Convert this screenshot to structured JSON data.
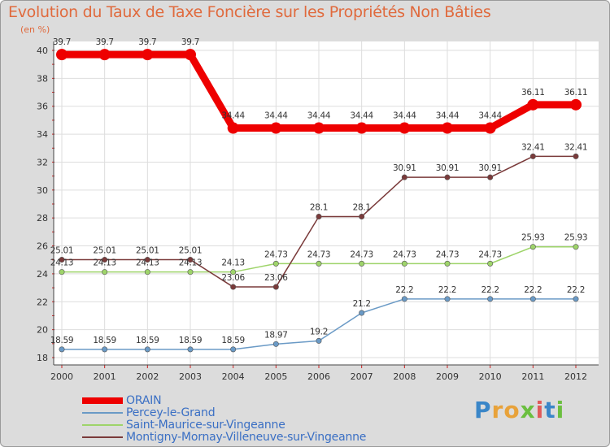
{
  "title": "Evolution du Taux de Taxe Foncière sur les Propriétés Non Bâties",
  "unit_label": "(en %)",
  "brand": "Proxiti",
  "chart_data": {
    "type": "line",
    "title": "Evolution du Taux de Taxe Foncière sur les Propriétés Non Bâties",
    "ylabel": "(en %)",
    "xlabel": "",
    "x": [
      "2000",
      "2001",
      "2002",
      "2003",
      "2004",
      "2005",
      "2006",
      "2007",
      "2008",
      "2009",
      "2010",
      "2011",
      "2012"
    ],
    "ylim": [
      18,
      40
    ],
    "yticks": [
      18,
      20,
      22,
      24,
      26,
      28,
      30,
      32,
      34,
      36,
      38,
      40
    ],
    "grid": true,
    "legend_position": "bottom-left",
    "series": [
      {
        "name": "ORAIN",
        "color": "#ee0000",
        "values": [
          39.7,
          39.7,
          39.7,
          39.7,
          34.44,
          34.44,
          34.44,
          34.44,
          34.44,
          34.44,
          34.44,
          36.11,
          36.11
        ],
        "labels": [
          "39.7",
          "39.7",
          "39.7",
          "39.7",
          "34.44",
          "34.44",
          "34.44",
          "34.44",
          "34.44",
          "34.44",
          "34.44",
          "36.11",
          "36.11"
        ]
      },
      {
        "name": "Percey-le-Grand",
        "color": "#6a9ac6",
        "values": [
          18.59,
          18.59,
          18.59,
          18.59,
          18.59,
          18.97,
          19.2,
          21.2,
          22.2,
          22.2,
          22.2,
          22.2,
          22.2
        ],
        "labels": [
          "18.59",
          "18.59",
          "18.59",
          "18.59",
          "18.59",
          "18.97",
          "19.2",
          "21.2",
          "22.2",
          "22.2",
          "22.2",
          "22.2",
          "22.2"
        ]
      },
      {
        "name": "Saint-Maurice-sur-Vingeanne",
        "color": "#9ed46a",
        "values": [
          24.13,
          24.13,
          24.13,
          24.13,
          24.13,
          24.73,
          24.73,
          24.73,
          24.73,
          24.73,
          24.73,
          25.93,
          25.93
        ],
        "labels": [
          "24.13",
          "24.13",
          "24.13",
          "24.13",
          "24.13",
          "24.73",
          "24.73",
          "24.73",
          "24.73",
          "24.73",
          "24.73",
          "25.93",
          "25.93"
        ]
      },
      {
        "name": "Montigny-Mornay-Villeneuve-sur-Vingeanne",
        "color": "#7a3a3a",
        "values": [
          25.01,
          25.01,
          25.01,
          25.01,
          23.06,
          23.06,
          28.1,
          28.1,
          30.91,
          30.91,
          30.91,
          32.41,
          32.41
        ],
        "labels": [
          "25.01",
          "25.01",
          "25.01",
          "25.01",
          "23.06",
          "23.06",
          "28.1",
          "28.1",
          "30.91",
          "30.91",
          "30.91",
          "32.41",
          "32.41"
        ]
      }
    ]
  }
}
